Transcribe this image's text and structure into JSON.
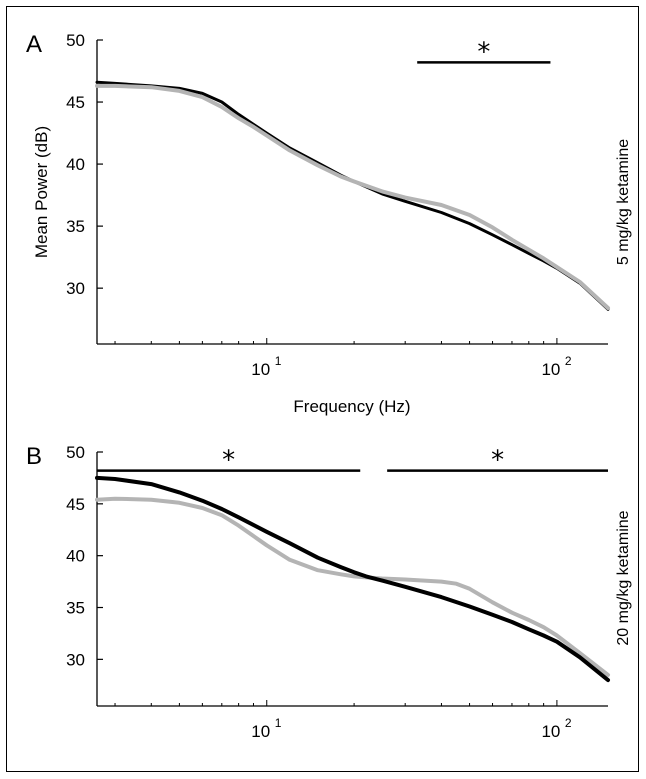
{
  "chart_data": [
    {
      "panel": "A",
      "type": "line",
      "title": "",
      "xlabel": "Frequency (Hz)",
      "ylabel": "Mean Power (dB)",
      "side_label": "5 mg/kg ketamine",
      "xscale": "log",
      "xlim": [
        2.6,
        150
      ],
      "ylim": [
        25.5,
        50
      ],
      "yticks": [
        "30",
        "35",
        "40",
        "45",
        "50"
      ],
      "ytick_values": [
        30,
        35,
        40,
        45,
        50
      ],
      "xticks": [
        {
          "base": "10",
          "exp": "1",
          "value": 10
        },
        {
          "base": "10",
          "exp": "2",
          "value": 100
        }
      ],
      "significance": [
        {
          "label": "*",
          "x_range": [
            33,
            95
          ],
          "y": 48.2
        }
      ],
      "series": [
        {
          "color": "#000000",
          "width": 3,
          "x": [
            2.6,
            3,
            4,
            5,
            6,
            7,
            8,
            9,
            10,
            12,
            15,
            18,
            20,
            25,
            30,
            40,
            50,
            60,
            70,
            80,
            90,
            100,
            120,
            150
          ],
          "y": [
            46.6,
            46.5,
            46.3,
            46.1,
            45.7,
            45.0,
            44.0,
            43.2,
            42.5,
            41.3,
            40.1,
            39.1,
            38.6,
            37.6,
            37.0,
            36.1,
            35.2,
            34.3,
            33.5,
            32.8,
            32.2,
            31.6,
            30.4,
            28.3
          ]
        },
        {
          "color": "#b4b4b4",
          "width": 4,
          "x": [
            2.6,
            3,
            4,
            5,
            6,
            7,
            8,
            9,
            10,
            12,
            15,
            18,
            20,
            25,
            30,
            40,
            50,
            60,
            70,
            80,
            90,
            100,
            120,
            150
          ],
          "y": [
            46.3,
            46.3,
            46.2,
            45.9,
            45.4,
            44.6,
            43.7,
            43.0,
            42.3,
            41.1,
            39.9,
            39.0,
            38.6,
            37.8,
            37.3,
            36.7,
            35.9,
            34.9,
            33.9,
            33.1,
            32.4,
            31.7,
            30.5,
            28.4
          ]
        }
      ]
    },
    {
      "panel": "B",
      "type": "line",
      "title": "",
      "xlabel": "",
      "ylabel": "",
      "side_label": "20 mg/kg ketamine",
      "xscale": "log",
      "xlim": [
        2.6,
        150
      ],
      "ylim": [
        25.5,
        50
      ],
      "yticks": [
        "30",
        "35",
        "40",
        "45",
        "50"
      ],
      "ytick_values": [
        30,
        35,
        40,
        45,
        50
      ],
      "xticks": [
        {
          "base": "10",
          "exp": "1",
          "value": 10
        },
        {
          "base": "10",
          "exp": "2",
          "value": 100
        }
      ],
      "significance": [
        {
          "label": "*",
          "x_range": [
            2.6,
            21
          ],
          "y": 48.2
        },
        {
          "label": "*",
          "x_range": [
            26,
            150
          ],
          "y": 48.2
        }
      ],
      "series": [
        {
          "color": "#000000",
          "width": 4,
          "x": [
            2.6,
            3,
            4,
            5,
            6,
            7,
            8,
            10,
            12,
            15,
            18,
            20,
            22,
            25,
            30,
            40,
            50,
            60,
            70,
            80,
            90,
            100,
            120,
            150
          ],
          "y": [
            47.5,
            47.4,
            46.9,
            46.1,
            45.3,
            44.5,
            43.7,
            42.3,
            41.2,
            39.8,
            38.9,
            38.4,
            38.0,
            37.6,
            37.0,
            36.0,
            35.1,
            34.3,
            33.6,
            32.9,
            32.3,
            31.7,
            30.2,
            28.0
          ]
        },
        {
          "color": "#b4b4b4",
          "width": 4,
          "x": [
            2.6,
            3,
            4,
            5,
            6,
            7,
            8,
            10,
            12,
            15,
            18,
            20,
            22,
            25,
            30,
            40,
            45,
            50,
            60,
            70,
            80,
            90,
            100,
            120,
            150
          ],
          "y": [
            45.4,
            45.5,
            45.4,
            45.1,
            44.6,
            43.9,
            42.9,
            41.0,
            39.6,
            38.6,
            38.2,
            38.0,
            37.9,
            37.8,
            37.7,
            37.5,
            37.3,
            36.8,
            35.5,
            34.5,
            33.8,
            33.1,
            32.3,
            30.6,
            28.5
          ]
        }
      ]
    }
  ]
}
